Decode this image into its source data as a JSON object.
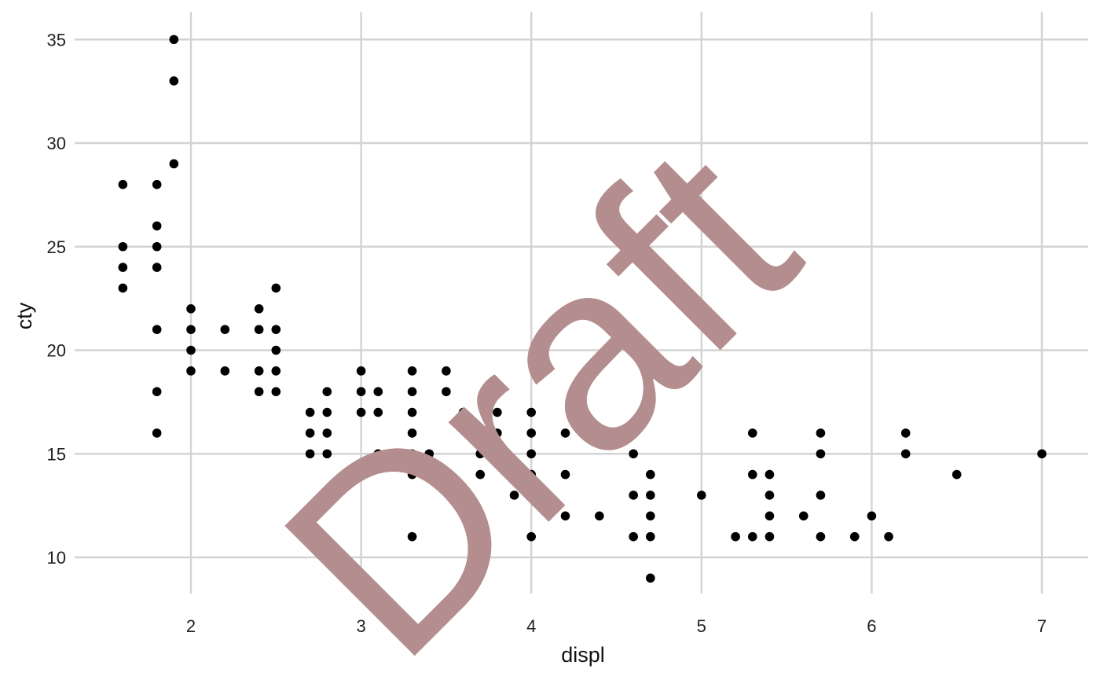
{
  "chart_data": {
    "type": "scatter",
    "title": "",
    "xlabel": "displ",
    "ylabel": "cty",
    "xlim": [
      1.3,
      7.3
    ],
    "ylim": [
      7.5,
      36.5
    ],
    "x_ticks": [
      2,
      3,
      4,
      5,
      6,
      7
    ],
    "y_ticks": [
      10,
      15,
      20,
      25,
      30,
      35
    ],
    "grid": true,
    "legend": "none",
    "point_color": "#000000",
    "grid_color": "#d3d3d3",
    "watermark": "Draft",
    "watermark_color": "#b48e8e",
    "points": [
      {
        "x": 1.6,
        "y": 28
      },
      {
        "x": 1.6,
        "y": 25
      },
      {
        "x": 1.6,
        "y": 24
      },
      {
        "x": 1.6,
        "y": 23
      },
      {
        "x": 1.8,
        "y": 28
      },
      {
        "x": 1.8,
        "y": 26
      },
      {
        "x": 1.8,
        "y": 25
      },
      {
        "x": 1.8,
        "y": 24
      },
      {
        "x": 1.8,
        "y": 21
      },
      {
        "x": 1.8,
        "y": 18
      },
      {
        "x": 1.8,
        "y": 16
      },
      {
        "x": 1.9,
        "y": 35
      },
      {
        "x": 1.9,
        "y": 33
      },
      {
        "x": 1.9,
        "y": 29
      },
      {
        "x": 2.0,
        "y": 22
      },
      {
        "x": 2.0,
        "y": 21
      },
      {
        "x": 2.0,
        "y": 20
      },
      {
        "x": 2.0,
        "y": 19
      },
      {
        "x": 2.2,
        "y": 21
      },
      {
        "x": 2.2,
        "y": 19
      },
      {
        "x": 2.4,
        "y": 22
      },
      {
        "x": 2.4,
        "y": 21
      },
      {
        "x": 2.4,
        "y": 19
      },
      {
        "x": 2.4,
        "y": 18
      },
      {
        "x": 2.5,
        "y": 23
      },
      {
        "x": 2.5,
        "y": 21
      },
      {
        "x": 2.5,
        "y": 20
      },
      {
        "x": 2.5,
        "y": 19
      },
      {
        "x": 2.5,
        "y": 18
      },
      {
        "x": 2.7,
        "y": 17
      },
      {
        "x": 2.7,
        "y": 16
      },
      {
        "x": 2.7,
        "y": 15
      },
      {
        "x": 2.8,
        "y": 18
      },
      {
        "x": 2.8,
        "y": 17
      },
      {
        "x": 2.8,
        "y": 16
      },
      {
        "x": 2.8,
        "y": 15
      },
      {
        "x": 3.0,
        "y": 19
      },
      {
        "x": 3.0,
        "y": 18
      },
      {
        "x": 3.0,
        "y": 17
      },
      {
        "x": 3.1,
        "y": 18
      },
      {
        "x": 3.1,
        "y": 17
      },
      {
        "x": 3.1,
        "y": 15
      },
      {
        "x": 3.3,
        "y": 19
      },
      {
        "x": 3.3,
        "y": 18
      },
      {
        "x": 3.3,
        "y": 17
      },
      {
        "x": 3.3,
        "y": 16
      },
      {
        "x": 3.3,
        "y": 15
      },
      {
        "x": 3.3,
        "y": 14
      },
      {
        "x": 3.3,
        "y": 11
      },
      {
        "x": 3.4,
        "y": 15
      },
      {
        "x": 3.5,
        "y": 19
      },
      {
        "x": 3.5,
        "y": 18
      },
      {
        "x": 3.6,
        "y": 17
      },
      {
        "x": 3.7,
        "y": 15
      },
      {
        "x": 3.7,
        "y": 14
      },
      {
        "x": 3.8,
        "y": 18
      },
      {
        "x": 3.8,
        "y": 17
      },
      {
        "x": 3.8,
        "y": 16
      },
      {
        "x": 3.8,
        "y": 15
      },
      {
        "x": 3.9,
        "y": 14
      },
      {
        "x": 3.9,
        "y": 13
      },
      {
        "x": 4.0,
        "y": 17
      },
      {
        "x": 4.0,
        "y": 16
      },
      {
        "x": 4.0,
        "y": 15
      },
      {
        "x": 4.0,
        "y": 14
      },
      {
        "x": 4.0,
        "y": 13
      },
      {
        "x": 4.0,
        "y": 11
      },
      {
        "x": 4.2,
        "y": 16
      },
      {
        "x": 4.2,
        "y": 14
      },
      {
        "x": 4.2,
        "y": 12
      },
      {
        "x": 4.4,
        "y": 12
      },
      {
        "x": 4.6,
        "y": 15
      },
      {
        "x": 4.6,
        "y": 13
      },
      {
        "x": 4.6,
        "y": 11
      },
      {
        "x": 4.7,
        "y": 14
      },
      {
        "x": 4.7,
        "y": 13
      },
      {
        "x": 4.7,
        "y": 12
      },
      {
        "x": 4.7,
        "y": 11
      },
      {
        "x": 4.7,
        "y": 9
      },
      {
        "x": 5.0,
        "y": 13
      },
      {
        "x": 5.2,
        "y": 11
      },
      {
        "x": 5.3,
        "y": 16
      },
      {
        "x": 5.3,
        "y": 14
      },
      {
        "x": 5.3,
        "y": 11
      },
      {
        "x": 5.4,
        "y": 14
      },
      {
        "x": 5.4,
        "y": 13
      },
      {
        "x": 5.4,
        "y": 12
      },
      {
        "x": 5.4,
        "y": 11
      },
      {
        "x": 5.6,
        "y": 12
      },
      {
        "x": 5.7,
        "y": 16
      },
      {
        "x": 5.7,
        "y": 15
      },
      {
        "x": 5.7,
        "y": 13
      },
      {
        "x": 5.7,
        "y": 11
      },
      {
        "x": 5.9,
        "y": 11
      },
      {
        "x": 6.0,
        "y": 12
      },
      {
        "x": 6.1,
        "y": 11
      },
      {
        "x": 6.2,
        "y": 16
      },
      {
        "x": 6.2,
        "y": 15
      },
      {
        "x": 6.5,
        "y": 14
      },
      {
        "x": 7.0,
        "y": 15
      }
    ]
  }
}
